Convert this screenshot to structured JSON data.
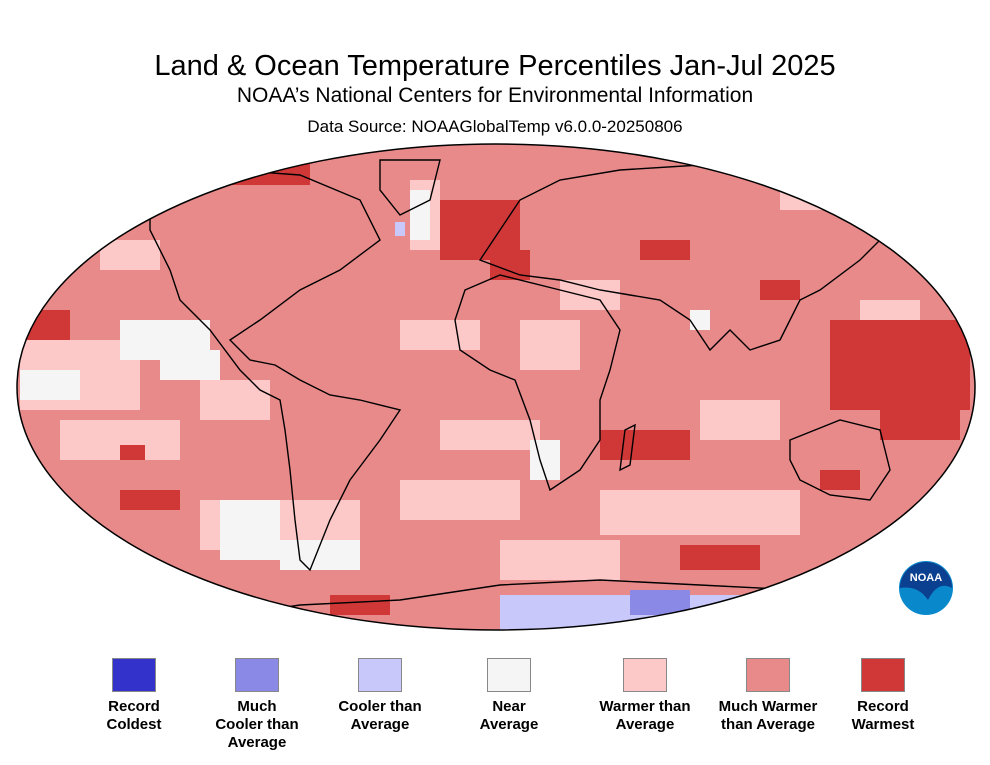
{
  "header": {
    "title": "Land & Ocean Temperature Percentiles Jan-Jul 2025",
    "subtitle": "NOAA’s National Centers for Environmental Information",
    "source": "Data Source: NOAAGlobalTemp v6.0.0-20250806"
  },
  "logo": {
    "text": "NOAA",
    "icon": "noaa-logo"
  },
  "legend": [
    {
      "label": "Record Coldest",
      "color": "#3333cc"
    },
    {
      "label": "Much Cooler than Average",
      "color": "#8a8ae6"
    },
    {
      "label": "Cooler than Average",
      "color": "#c8c8fa"
    },
    {
      "label": "Near Average",
      "color": "#f5f5f5"
    },
    {
      "label": "Warmer than Average",
      "color": "#fcc8c8"
    },
    {
      "label": "Much Warmer than Average",
      "color": "#e88a8a"
    },
    {
      "label": "Record Warmest",
      "color": "#d03838"
    }
  ]
}
